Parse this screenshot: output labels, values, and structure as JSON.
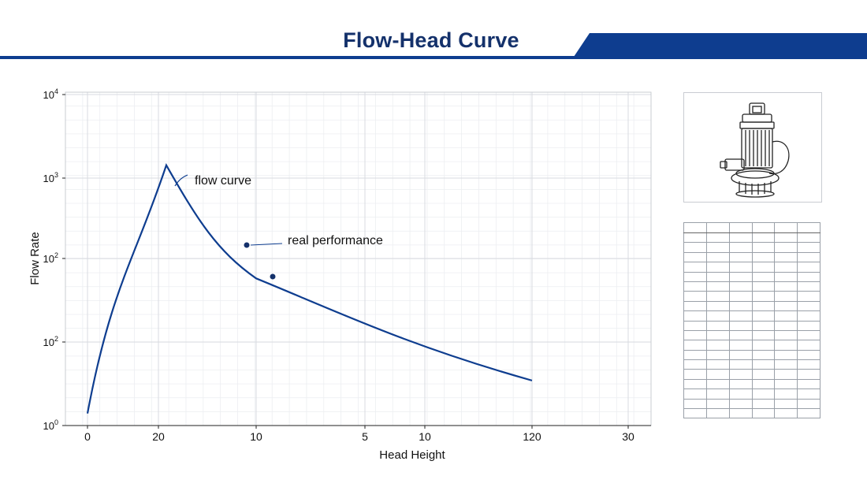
{
  "title": "Flow-Head Curve",
  "colors": {
    "accent": "#0e3d8f",
    "title": "#14316b",
    "curve": "#0e3d8f"
  },
  "chart_data": {
    "type": "line",
    "title": "",
    "xlabel": "Head Height",
    "ylabel": "Flow Rate",
    "x_tick_labels": [
      "0",
      "20",
      "10",
      "5",
      "10",
      "120",
      "30"
    ],
    "y_tick_labels": [
      {
        "base": "10",
        "exp": "0"
      },
      {
        "base": "10",
        "exp": "2"
      },
      {
        "base": "10",
        "exp": "2"
      },
      {
        "base": "10",
        "exp": "3"
      },
      {
        "base": "10",
        "exp": "4"
      }
    ],
    "y_scale": "log",
    "ylim": [
      1,
      10000
    ],
    "grid": true,
    "series": [
      {
        "type": "line",
        "points": [
          [
            0,
            1.4
          ],
          [
            20,
            1400
          ],
          [
            25,
            500
          ],
          [
            40,
            60
          ],
          [
            60,
            18
          ],
          [
            75,
            8
          ],
          [
            100,
            3.5
          ],
          [
            130,
            2
          ]
        ]
      }
    ],
    "markers": [
      {
        "x": 37,
        "y": 150,
        "label_key": "real_performance"
      },
      {
        "x": 44,
        "y": 58,
        "label_key": ""
      }
    ],
    "annotations": {
      "flow_curve": "flow curve",
      "real_performance": "real performance"
    }
  },
  "table": {
    "header": [
      "",
      "",
      "",
      "",
      "",
      ""
    ],
    "rows": 20
  }
}
